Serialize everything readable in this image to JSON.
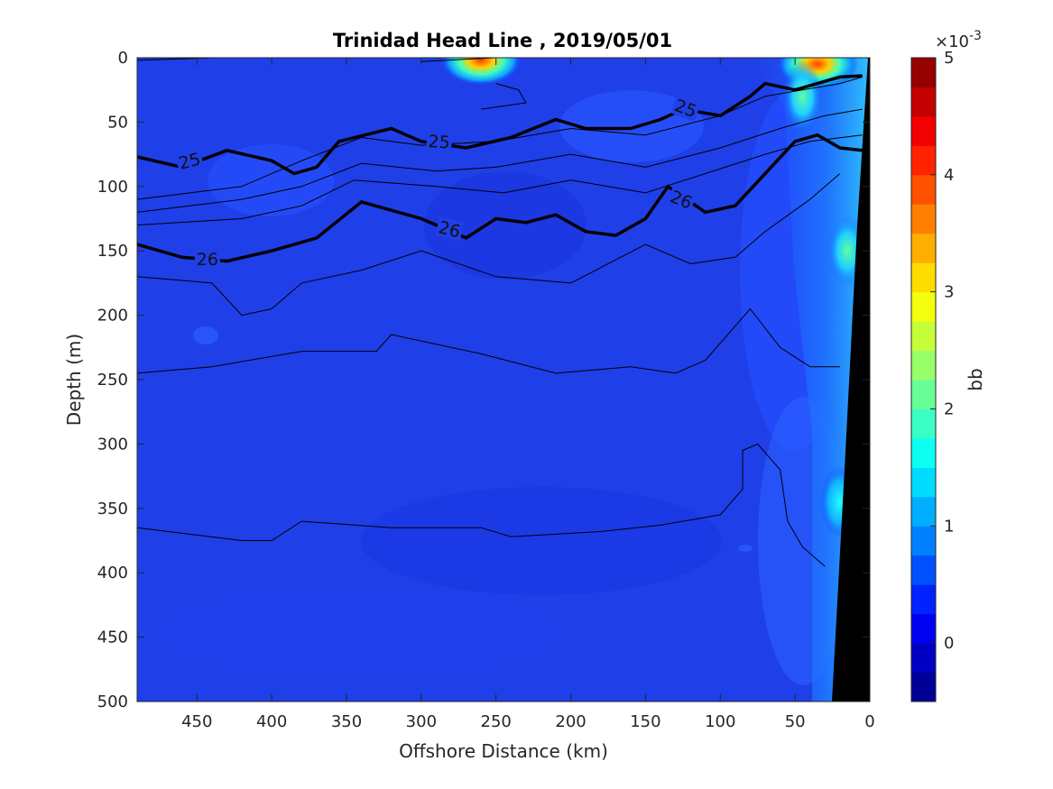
{
  "chart_data": {
    "type": "heatmap",
    "title": "Trinidad Head Line , 2019/05/01",
    "xlabel": "Offshore Distance (km)",
    "ylabel": "Depth (m)",
    "xlim": [
      490,
      0
    ],
    "ylim": [
      500,
      0
    ],
    "x_reversed": true,
    "y_reversed": true,
    "x_ticks": [
      450,
      400,
      350,
      300,
      250,
      200,
      150,
      100,
      50,
      0
    ],
    "y_ticks": [
      0,
      50,
      100,
      150,
      200,
      250,
      300,
      350,
      400,
      450,
      500
    ],
    "colorbar": {
      "label": "bb",
      "exponent_label": "×10",
      "exponent_value": "-3",
      "range": [
        -0.5,
        5
      ],
      "ticks": [
        0,
        1,
        2,
        3,
        4,
        5
      ],
      "colormap": "jet"
    },
    "density_contours": [
      {
        "value": "25",
        "bold": true,
        "labels": [
          {
            "text": "25",
            "x": 455,
            "y": 80,
            "angle": -14
          },
          {
            "text": "25",
            "x": 288,
            "y": 65,
            "angle": 4
          },
          {
            "text": "25",
            "x": 123,
            "y": 39,
            "angle": 20
          }
        ]
      },
      {
        "value": "26",
        "bold": true,
        "labels": [
          {
            "text": "26",
            "x": 443,
            "y": 156,
            "angle": 0
          },
          {
            "text": "26",
            "x": 281,
            "y": 133,
            "angle": 14
          },
          {
            "text": "26",
            "x": 126,
            "y": 110,
            "angle": 22
          }
        ]
      }
    ],
    "high_bb_patches": [
      {
        "x": 260,
        "depth": 2,
        "value": 4.5
      },
      {
        "x": 35,
        "depth": 5,
        "value": 4.5
      },
      {
        "x": 45,
        "depth": 30,
        "value": 1.6
      },
      {
        "x": 15,
        "depth": 150,
        "value": 2.2
      },
      {
        "x": 20,
        "depth": 345,
        "value": 1.3
      }
    ],
    "bathymetry_fill": "#000000",
    "background_value": 0.3
  }
}
